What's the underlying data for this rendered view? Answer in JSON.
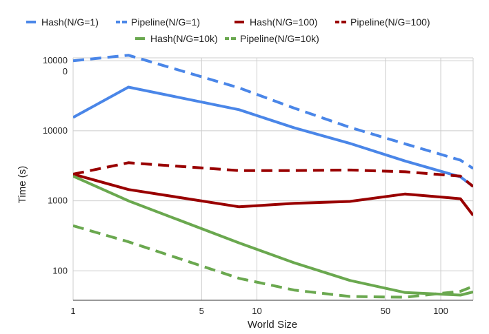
{
  "chart_data": {
    "type": "line",
    "title": "",
    "xlabel": "World Size",
    "ylabel": "Time (s)",
    "xscale": "log",
    "yscale": "log",
    "xlim": [
      1,
      150
    ],
    "ylim": [
      38,
      110000
    ],
    "grid": true,
    "legend_position": "top",
    "x_ticks": [
      {
        "value": 1,
        "label": "1"
      },
      {
        "value": 5,
        "label": "5"
      },
      {
        "value": 10,
        "label": "10"
      },
      {
        "value": 50,
        "label": "50"
      },
      {
        "value": 100,
        "label": "100"
      }
    ],
    "y_ticks": [
      {
        "value": 100,
        "label": "100"
      },
      {
        "value": 1000,
        "label": "1000"
      },
      {
        "value": 10000,
        "label": "10000"
      },
      {
        "value": 100000,
        "label": "10000\n0"
      }
    ],
    "x": [
      1,
      2,
      8,
      16,
      32,
      64,
      128,
      150
    ],
    "series": [
      {
        "name": "Hash(N/G=1)",
        "color": "#4a86e8",
        "dash": "solid",
        "values": [
          15500,
          42000,
          20000,
          11000,
          6600,
          3700,
          2200,
          1600
        ]
      },
      {
        "name": "Pipeline(N/G=1)",
        "color": "#4a86e8",
        "dash": "dashed",
        "values": [
          100000,
          120000,
          41000,
          21000,
          11200,
          6500,
          3800,
          2900
        ]
      },
      {
        "name": "Hash(N/G=100)",
        "color": "#990000",
        "dash": "solid",
        "values": [
          2400,
          1450,
          820,
          920,
          980,
          1250,
          1070,
          620
        ]
      },
      {
        "name": "Pipeline(N/G=100)",
        "color": "#990000",
        "dash": "dashed",
        "values": [
          2400,
          3500,
          2700,
          2700,
          2750,
          2600,
          2250,
          1600
        ]
      },
      {
        "name": "Hash(N/G=10k)",
        "color": "#6aa84f",
        "dash": "solid",
        "values": [
          2250,
          1000,
          250,
          130,
          73,
          49,
          45,
          50
        ]
      },
      {
        "name": "Pipeline(N/G=10k)",
        "color": "#6aa84f",
        "dash": "dashed",
        "values": [
          440,
          260,
          78,
          53,
          43,
          42,
          51,
          60
        ]
      }
    ]
  }
}
